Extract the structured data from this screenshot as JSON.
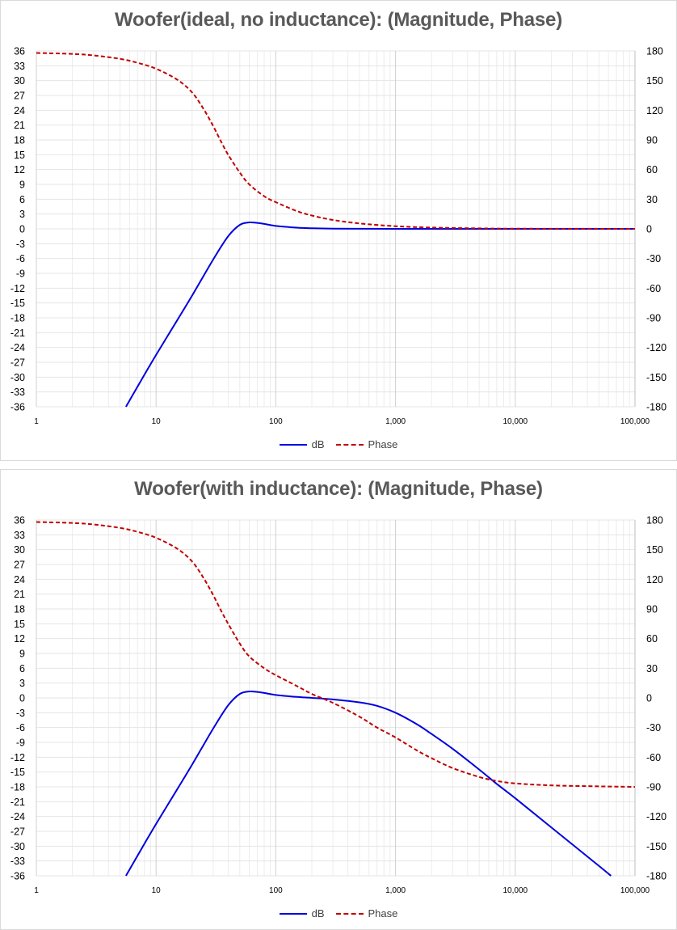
{
  "chart_data": [
    {
      "type": "line",
      "title": "Woofer(ideal, no inductance): (Magnitude, Phase)",
      "x_scale": "log",
      "xlim": [
        1,
        100000
      ],
      "x_ticks": [
        "1",
        "10",
        "100",
        "1,000",
        "10,000",
        "100,000"
      ],
      "ylim_left": [
        -36,
        36
      ],
      "y_left_ticks": [
        "36",
        "33",
        "30",
        "27",
        "24",
        "21",
        "18",
        "15",
        "12",
        "9",
        "6",
        "3",
        "0",
        "-3",
        "-6",
        "-9",
        "-12",
        "-15",
        "-18",
        "-21",
        "-24",
        "-27",
        "-30",
        "-33",
        "-36"
      ],
      "ylim_right": [
        -180,
        180
      ],
      "y_right_ticks": [
        "180",
        "150",
        "120",
        "90",
        "60",
        "30",
        "0",
        "-30",
        "-60",
        "-90",
        "-120",
        "-150",
        "-180"
      ],
      "grid": true,
      "legend_position": "bottom",
      "series": [
        {
          "name": "dB",
          "axis": "left",
          "color": "#0000e0",
          "style": "solid",
          "x": [
            5.6,
            8,
            10,
            15,
            20,
            30,
            40,
            50,
            60,
            70,
            80,
            100,
            150,
            200,
            300,
            500,
            1000,
            10000,
            100000
          ],
          "y": [
            -36,
            -29.5,
            -25.5,
            -18.5,
            -13.5,
            -6.2,
            -1.5,
            0.8,
            1.3,
            1.2,
            1.0,
            0.6,
            0.25,
            0.12,
            0.05,
            0.02,
            0,
            0,
            0
          ]
        },
        {
          "name": "Phase",
          "axis": "right",
          "color": "#c00000",
          "style": "dashed",
          "x": [
            1,
            2,
            3,
            5,
            7,
            10,
            15,
            20,
            25,
            30,
            35,
            40,
            50,
            60,
            80,
            100,
            150,
            200,
            300,
            500,
            1000,
            2000,
            5000,
            10000,
            100000
          ],
          "y": [
            178,
            177,
            175.5,
            172,
            168,
            162,
            151,
            138,
            121,
            104,
            88,
            75,
            57,
            45,
            33,
            27,
            18,
            13.5,
            9,
            5.5,
            2.7,
            1.3,
            0.5,
            0.2,
            0
          ]
        }
      ]
    },
    {
      "type": "line",
      "title": "Woofer(with inductance): (Magnitude, Phase)",
      "x_scale": "log",
      "xlim": [
        1,
        100000
      ],
      "x_ticks": [
        "1",
        "10",
        "100",
        "1,000",
        "10,000",
        "100,000"
      ],
      "ylim_left": [
        -36,
        36
      ],
      "y_left_ticks": [
        "36",
        "33",
        "30",
        "27",
        "24",
        "21",
        "18",
        "15",
        "12",
        "9",
        "6",
        "3",
        "0",
        "-3",
        "-6",
        "-9",
        "-12",
        "-15",
        "-18",
        "-21",
        "-24",
        "-27",
        "-30",
        "-33",
        "-36"
      ],
      "ylim_right": [
        -180,
        180
      ],
      "y_right_ticks": [
        "180",
        "150",
        "120",
        "90",
        "60",
        "30",
        "0",
        "-30",
        "-60",
        "-90",
        "-120",
        "-150",
        "-180"
      ],
      "grid": true,
      "legend_position": "bottom",
      "series": [
        {
          "name": "dB",
          "axis": "left",
          "color": "#0000e0",
          "style": "solid",
          "x": [
            5.6,
            8,
            10,
            15,
            20,
            30,
            40,
            50,
            60,
            70,
            80,
            100,
            150,
            200,
            300,
            500,
            700,
            1000,
            1500,
            2000,
            3000,
            5000,
            7000,
            10000,
            20000,
            50000,
            63000
          ],
          "y": [
            -36,
            -29.5,
            -25.5,
            -18.5,
            -13.5,
            -6.2,
            -1.5,
            0.8,
            1.3,
            1.2,
            1.0,
            0.6,
            0.2,
            0,
            -0.3,
            -0.9,
            -1.6,
            -3.0,
            -5.3,
            -7.3,
            -10.3,
            -14.5,
            -17.4,
            -20.3,
            -26.2,
            -34.0,
            -36
          ]
        },
        {
          "name": "Phase",
          "axis": "right",
          "color": "#c00000",
          "style": "dashed",
          "x": [
            1,
            2,
            3,
            5,
            7,
            10,
            15,
            20,
            25,
            30,
            35,
            40,
            50,
            60,
            80,
            100,
            150,
            200,
            300,
            500,
            700,
            1000,
            1500,
            2000,
            3000,
            5000,
            7000,
            10000,
            20000,
            50000,
            100000
          ],
          "y": [
            178,
            177,
            175.5,
            172,
            168,
            162,
            151,
            138,
            121,
            104,
            88,
            75,
            55,
            42,
            30,
            23,
            12,
            4,
            -5,
            -19,
            -30,
            -40,
            -53,
            -61,
            -71,
            -80,
            -84,
            -86.5,
            -88.5,
            -89.5,
            -90
          ]
        }
      ]
    }
  ]
}
